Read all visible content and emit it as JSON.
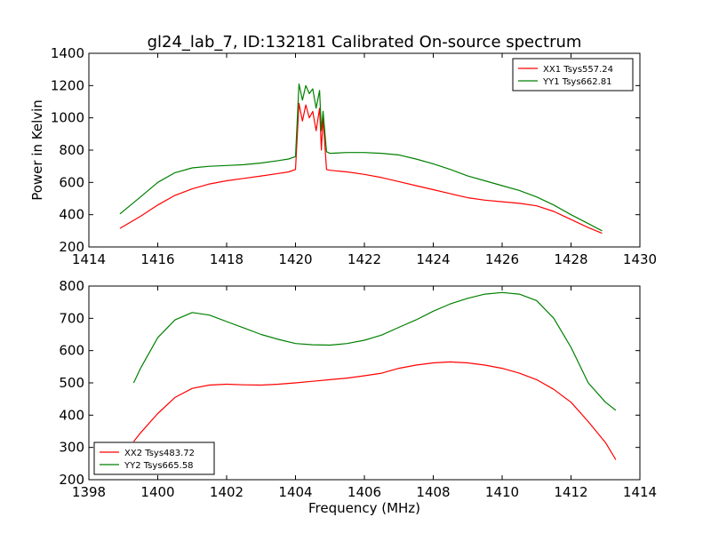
{
  "figure": {
    "title": "gl24_lab_7, ID:132181 Calibrated On-source spectrum"
  },
  "chart_data": [
    {
      "type": "line",
      "title": "gl24_lab_7, ID:132181 Calibrated On-source spectrum",
      "xlabel": "",
      "ylabel": "Power in Kelvin",
      "xlim": [
        1414,
        1430
      ],
      "ylim": [
        200,
        1400
      ],
      "xticks": [
        1414,
        1416,
        1418,
        1420,
        1422,
        1424,
        1426,
        1428,
        1430
      ],
      "yticks": [
        200,
        400,
        600,
        800,
        1000,
        1200,
        1400
      ],
      "grid": false,
      "legend_position": "top-right",
      "series": [
        {
          "name": "XX1 Tsys557.24",
          "color": "#ff0000",
          "x": [
            1414.9,
            1415.5,
            1416.0,
            1416.5,
            1417.0,
            1417.5,
            1418.0,
            1418.5,
            1419.0,
            1419.5,
            1419.8,
            1420.0,
            1420.1,
            1420.2,
            1420.3,
            1420.4,
            1420.5,
            1420.6,
            1420.7,
            1420.75,
            1420.8,
            1420.9,
            1421.0,
            1421.5,
            1422.0,
            1422.5,
            1423.0,
            1423.5,
            1424.0,
            1424.5,
            1425.0,
            1425.5,
            1426.0,
            1426.5,
            1427.0,
            1427.5,
            1428.0,
            1428.5,
            1428.9
          ],
          "y": [
            315,
            390,
            460,
            520,
            560,
            590,
            610,
            625,
            640,
            655,
            665,
            680,
            1090,
            980,
            1080,
            1000,
            1040,
            920,
            1060,
            800,
            1000,
            680,
            675,
            665,
            650,
            630,
            605,
            580,
            555,
            530,
            505,
            490,
            480,
            470,
            455,
            420,
            370,
            320,
            285
          ]
        },
        {
          "name": "YY1 Tsys662.81",
          "color": "#008000",
          "x": [
            1414.9,
            1415.5,
            1416.0,
            1416.5,
            1417.0,
            1417.5,
            1418.0,
            1418.5,
            1419.0,
            1419.5,
            1419.8,
            1420.0,
            1420.1,
            1420.2,
            1420.3,
            1420.4,
            1420.5,
            1420.6,
            1420.7,
            1420.75,
            1420.8,
            1420.9,
            1421.0,
            1421.5,
            1422.0,
            1422.5,
            1423.0,
            1423.5,
            1424.0,
            1424.5,
            1425.0,
            1425.5,
            1426.0,
            1426.5,
            1427.0,
            1427.5,
            1428.0,
            1428.5,
            1428.9
          ],
          "y": [
            405,
            510,
            600,
            660,
            690,
            700,
            705,
            710,
            720,
            735,
            745,
            760,
            1210,
            1110,
            1200,
            1150,
            1180,
            1060,
            1170,
            920,
            1040,
            790,
            780,
            785,
            785,
            780,
            770,
            745,
            715,
            680,
            640,
            610,
            580,
            550,
            510,
            460,
            400,
            345,
            300
          ]
        }
      ]
    },
    {
      "type": "line",
      "title": "",
      "xlabel": "Frequency (MHz)",
      "ylabel": "",
      "xlim": [
        1398,
        1414
      ],
      "ylim": [
        200,
        800
      ],
      "xticks": [
        1398,
        1400,
        1402,
        1404,
        1406,
        1408,
        1410,
        1412,
        1414
      ],
      "yticks": [
        200,
        300,
        400,
        500,
        600,
        700,
        800
      ],
      "grid": false,
      "legend_position": "bottom-left",
      "series": [
        {
          "name": "XX2 Tsys483.72",
          "color": "#ff0000",
          "x": [
            1399.3,
            1399.5,
            1400.0,
            1400.5,
            1401.0,
            1401.5,
            1402.0,
            1402.5,
            1403.0,
            1403.5,
            1404.0,
            1404.5,
            1405.0,
            1405.5,
            1406.0,
            1406.5,
            1407.0,
            1407.5,
            1408.0,
            1408.5,
            1409.0,
            1409.5,
            1410.0,
            1410.5,
            1411.0,
            1411.5,
            1412.0,
            1412.5,
            1413.0,
            1413.3
          ],
          "y": [
            318,
            345,
            405,
            455,
            483,
            493,
            496,
            494,
            493,
            496,
            500,
            505,
            510,
            515,
            522,
            530,
            545,
            555,
            562,
            565,
            562,
            555,
            545,
            530,
            510,
            480,
            440,
            380,
            315,
            262
          ]
        },
        {
          "name": "YY2 Tsys665.58",
          "color": "#008000",
          "x": [
            1399.3,
            1399.5,
            1400.0,
            1400.5,
            1401.0,
            1401.5,
            1402.0,
            1402.5,
            1403.0,
            1403.5,
            1404.0,
            1404.5,
            1405.0,
            1405.5,
            1406.0,
            1406.5,
            1407.0,
            1407.5,
            1408.0,
            1408.5,
            1409.0,
            1409.5,
            1410.0,
            1410.5,
            1411.0,
            1411.5,
            1412.0,
            1412.5,
            1413.0,
            1413.3
          ],
          "y": [
            500,
            545,
            640,
            695,
            718,
            710,
            690,
            670,
            650,
            635,
            622,
            618,
            617,
            622,
            632,
            648,
            672,
            695,
            722,
            745,
            762,
            775,
            780,
            775,
            755,
            700,
            610,
            500,
            440,
            415
          ]
        }
      ]
    }
  ]
}
